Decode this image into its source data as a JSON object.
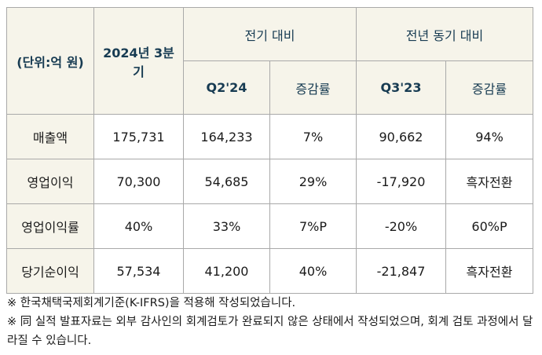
{
  "table": {
    "unit_label": "(단위:억 원)",
    "period_label": "2024년 3분기",
    "group_qoq": "전기 대비",
    "group_yoy": "전년 동기 대비",
    "col_q2": "Q2'24",
    "col_q2_rate": "증감률",
    "col_q3": "Q3'23",
    "col_q3_rate": "증감률",
    "rows": [
      {
        "label": "매출액",
        "current": "175,731",
        "q2": "164,233",
        "q2_rate": "7%",
        "q3": "90,662",
        "q3_rate": "94%"
      },
      {
        "label": "영업이익",
        "current": "70,300",
        "q2": "54,685",
        "q2_rate": "29%",
        "q3": "-17,920",
        "q3_rate": "흑자전환"
      },
      {
        "label": "영업이익률",
        "current": "40%",
        "q2": "33%",
        "q2_rate": "7%P",
        "q3": "-20%",
        "q3_rate": "60%P"
      },
      {
        "label": "당기순이익",
        "current": "57,534",
        "q2": "41,200",
        "q2_rate": "40%",
        "q3": "-21,847",
        "q3_rate": "흑자전환"
      }
    ]
  },
  "notes": [
    "※ 한국채택국제회계기준(K-IFRS)을 적용해 작성되었습니다.",
    "※ 同 실적 발표자료는 외부 감사인의 회계검토가 완료되지 않은 상태에서 작성되었으며, 회계 검토 과정에서 달라질 수 있습니다."
  ]
}
